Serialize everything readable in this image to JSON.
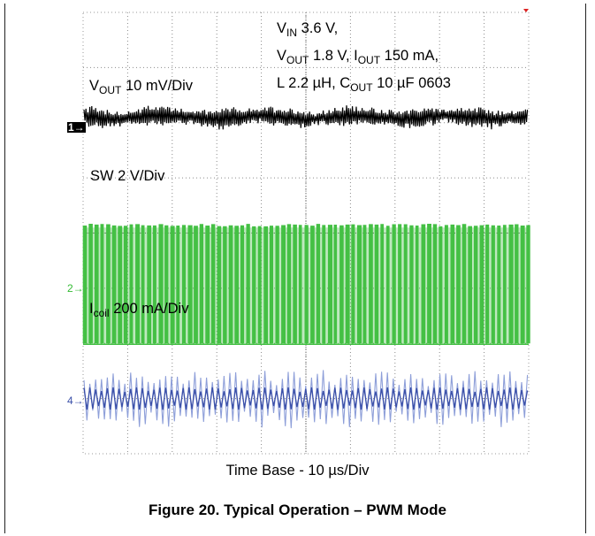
{
  "settings": {
    "vin_pre": "V",
    "vin_sub": "IN",
    "vin_post": " 3.6 V,",
    "vout_pre": "V",
    "vout_sub": "OUT",
    "vout_mid": " 1.8 V, I",
    "iout_sub": "OUT",
    "iout_post": " 150 mA,",
    "l_text": "L  2.2 µH, C",
    "cout_sub": "OUT",
    "cout_post": " 10 µF 0603"
  },
  "channels": {
    "ch1": {
      "label_pre": "V",
      "label_sub": "OUT",
      "label_post": " 10 mV/Div",
      "marker": "1→",
      "color": "#000000"
    },
    "ch2": {
      "label": "SW 2 V/Div",
      "marker": "2→",
      "color": "#44c044"
    },
    "ch4": {
      "label_pre": "I",
      "label_sub": "coil",
      "label_post": " 200 mA/Div",
      "marker": "4→",
      "color": "#3a4fa8"
    }
  },
  "time_base": "Time Base - 10 µs/Div",
  "caption": "Figure 20. Typical Operation – PWM Mode",
  "chart_data": {
    "type": "line",
    "grid": true,
    "x_divisions": 10,
    "y_divisions": 8,
    "xlabel": "Time Base - 10 µs/Div",
    "series": [
      {
        "name": "VOUT 10 mV/Div",
        "waveform": "ripple noise",
        "level_div": 6.1
      },
      {
        "name": "SW 2 V/Div",
        "waveform": "switching square wave",
        "low_div": 2.0,
        "high_div": 4.1
      },
      {
        "name": "Icoil 200 mA/Div",
        "waveform": "triangular ripple",
        "center_div": 1.0,
        "pk_pk_div": 0.9
      }
    ]
  }
}
